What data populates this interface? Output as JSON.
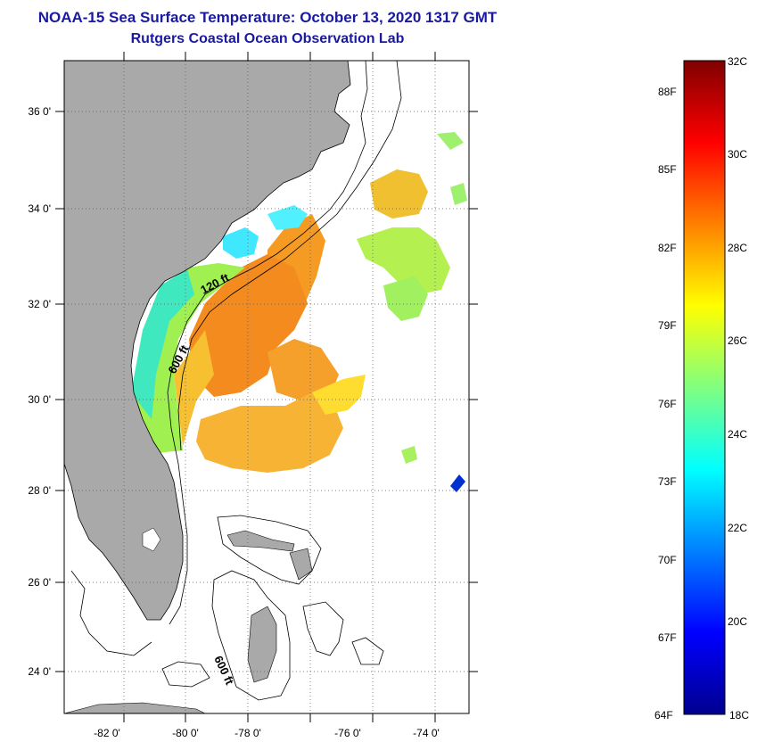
{
  "header": {
    "title": "NOAA-15 Sea Surface Temperature:  October 13, 2020 1317 GMT",
    "subtitle": "Rutgers Coastal Ocean Observation Lab"
  },
  "map": {
    "lat_labels": [
      "36 0'",
      "34 0'",
      "32 0'",
      "30 0'",
      "28 0'",
      "26 0'",
      "24 0'"
    ],
    "lon_labels": [
      "-82 0'",
      "-80 0'",
      "-78 0'",
      "-76 0'",
      "-74 0'"
    ],
    "contour_labels": [
      "120 ft",
      "600 ft",
      "600 ft"
    ],
    "colors": {
      "land": "#a9a9a9",
      "frame": "#000000",
      "grid": "#555555"
    }
  },
  "colorbar": {
    "fahrenheit": [
      "88F",
      "85F",
      "82F",
      "79F",
      "76F",
      "73F",
      "70F",
      "67F",
      "64F"
    ],
    "celsius": [
      "32C",
      "30C",
      "28C",
      "26C",
      "24C",
      "22C",
      "20C",
      "18C"
    ]
  }
}
